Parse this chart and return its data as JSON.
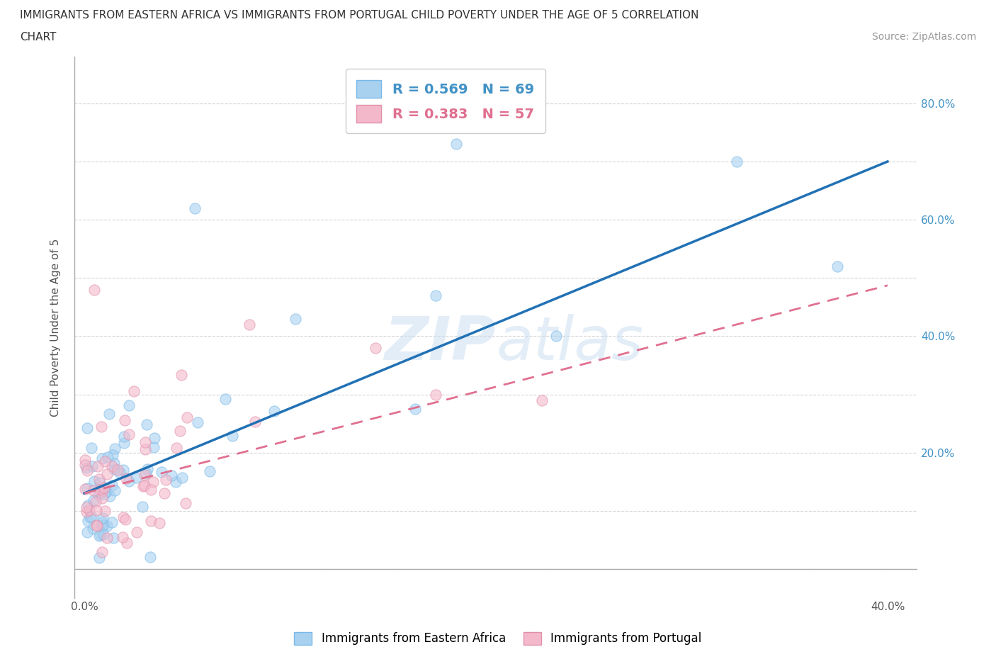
{
  "title_line1": "IMMIGRANTS FROM EASTERN AFRICA VS IMMIGRANTS FROM PORTUGAL CHILD POVERTY UNDER THE AGE OF 5 CORRELATION",
  "title_line2": "CHART",
  "source": "Source: ZipAtlas.com",
  "ylabel": "Child Poverty Under the Age of 5",
  "right_tick_color": "#4292c6",
  "x_tick_positions": [
    0.0,
    0.05,
    0.1,
    0.15,
    0.2,
    0.25,
    0.3,
    0.35,
    0.4
  ],
  "x_tick_labels": [
    "0.0%",
    "",
    "",
    "",
    "",
    "",
    "",
    "",
    "40.0%"
  ],
  "y_tick_positions": [
    0.0,
    0.1,
    0.2,
    0.3,
    0.4,
    0.5,
    0.6,
    0.7,
    0.8
  ],
  "y_tick_labels_right": [
    "",
    "",
    "20.0%",
    "",
    "40.0%",
    "",
    "60.0%",
    "",
    "80.0%"
  ],
  "xlim": [
    -0.005,
    0.415
  ],
  "ylim": [
    -0.05,
    0.88
  ],
  "series1_color": "#a8d1f0",
  "series2_color": "#f4b8cb",
  "trend1_color": "#2171b5",
  "trend2_color": "#e07090",
  "trend1_linestyle": "solid",
  "trend2_linestyle": "dashed",
  "R1": 0.569,
  "N1": 69,
  "R2": 0.383,
  "N2": 57,
  "watermark": "ZIPAtlas",
  "background_color": "#ffffff",
  "grid_color": "#d0d0d0",
  "legend_color1": "#4292c6",
  "legend_color2": "#e07090"
}
